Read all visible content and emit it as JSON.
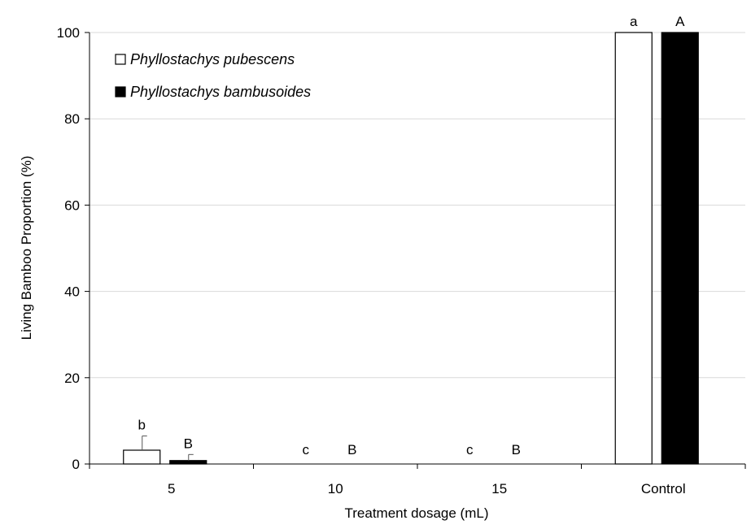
{
  "chart_data": {
    "type": "bar",
    "xlabel": "Treatment dosage (mL)",
    "ylabel": "Living Bamboo Proportion (%)",
    "ylim": [
      0,
      100
    ],
    "yticks": [
      0,
      20,
      40,
      60,
      80,
      100
    ],
    "grid": true,
    "legend_position": "top-left",
    "categories": [
      "5",
      "10",
      "15",
      "Control"
    ],
    "series": [
      {
        "name": "Phyllostachys pubescens",
        "fill": "#ffffff",
        "stroke": "#000000",
        "values": [
          3.2,
          0,
          0,
          100
        ],
        "error": [
          3.3,
          0,
          0,
          0
        ],
        "significance": [
          "b",
          "c",
          "c",
          "a"
        ]
      },
      {
        "name": "Phyllostachys bambusoides",
        "fill": "#000000",
        "stroke": "#000000",
        "values": [
          0.8,
          0,
          0,
          100
        ],
        "error": [
          1.4,
          0,
          0,
          0
        ],
        "significance": [
          "B",
          "B",
          "B",
          "A"
        ]
      }
    ]
  }
}
